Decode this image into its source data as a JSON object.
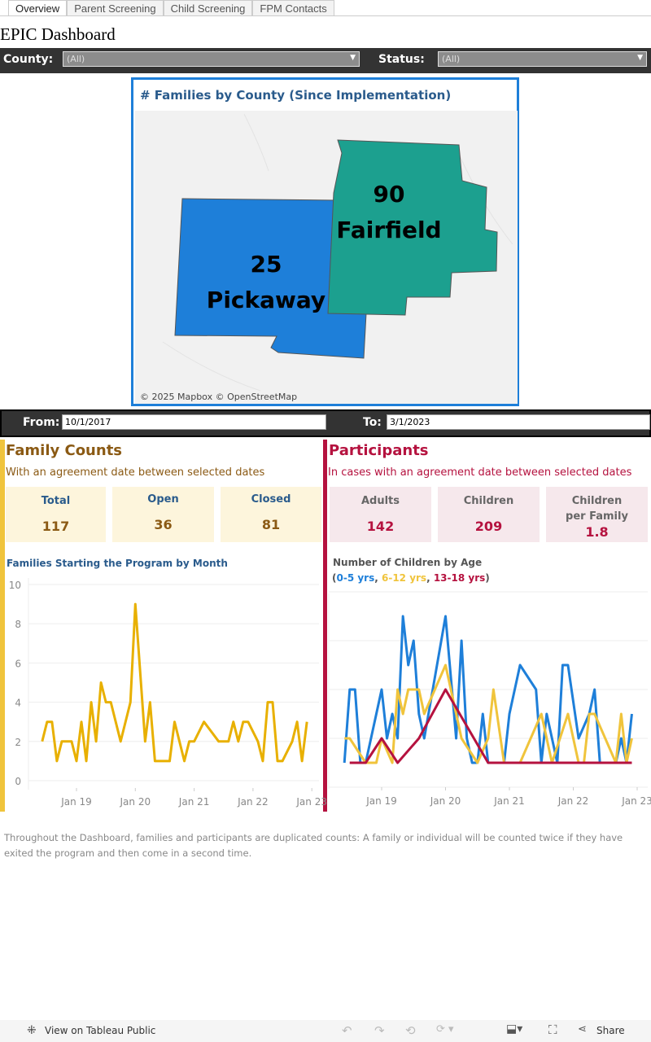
{
  "tabs": [
    "Overview",
    "Parent Screening",
    "Child Screening",
    "FPM Contacts"
  ],
  "title": "EPIC Dashboard",
  "filters": {
    "county_label": "County:",
    "county_value": "(All)",
    "status_label": "Status:",
    "status_value": "(All)"
  },
  "map": {
    "title": "# Families by County (Since Implementation)",
    "credit": "© 2025 Mapbox  © OpenStreetMap",
    "counties": [
      {
        "name": "Pickaway",
        "value": "25",
        "color": "#1e7fd9"
      },
      {
        "name": "Fairfield",
        "value": "90",
        "color": "#1ca08f"
      }
    ]
  },
  "dates": {
    "from_label": "From:",
    "from_value": "10/1/2017",
    "to_label": "To:",
    "to_value": "3/1/2023"
  },
  "family": {
    "title": "Family Counts",
    "subtitle": "With an agreement date between selected dates",
    "color": "#8b5a14",
    "accent": "#f0c43c",
    "cards": [
      {
        "label": "Total",
        "value": "117"
      },
      {
        "label": "Open",
        "value": "36"
      },
      {
        "label": "Closed",
        "value": "81"
      }
    ]
  },
  "participants": {
    "title": "Participants",
    "subtitle": "In cases with an agreement date between selected dates",
    "color": "#b5123f",
    "cards": [
      {
        "label": "Adults",
        "value": "142"
      },
      {
        "label": "Children",
        "value": "209"
      },
      {
        "label": "Children per Family",
        "value": "1.8"
      }
    ]
  },
  "chart_data": [
    {
      "type": "line",
      "title": "Families Starting the Program by Month",
      "ylim": [
        0,
        10
      ],
      "yticks": [
        "0",
        "2",
        "4",
        "6",
        "8",
        "10"
      ],
      "xticks": [
        "Jan 19",
        "Jan 20",
        "Jan 21",
        "Jan 22",
        "Jan 23"
      ],
      "series": [
        {
          "color": "#e8b000",
          "points": [
            [
              "2018-06",
              2
            ],
            [
              "2018-07",
              3
            ],
            [
              "2018-08",
              3
            ],
            [
              "2018-09",
              1
            ],
            [
              "2018-10",
              2
            ],
            [
              "2018-11",
              2
            ],
            [
              "2018-12",
              2
            ],
            [
              "2019-01",
              1
            ],
            [
              "2019-02",
              3
            ],
            [
              "2019-03",
              1
            ],
            [
              "2019-04",
              4
            ],
            [
              "2019-05",
              2
            ],
            [
              "2019-06",
              5
            ],
            [
              "2019-07",
              4
            ],
            [
              "2019-08",
              4
            ],
            [
              "2019-10",
              2
            ],
            [
              "2019-12",
              4
            ],
            [
              "2020-01",
              9
            ],
            [
              "2020-03",
              2
            ],
            [
              "2020-04",
              4
            ],
            [
              "2020-05",
              1
            ],
            [
              "2020-08",
              1
            ],
            [
              "2020-09",
              3
            ],
            [
              "2020-11",
              1
            ],
            [
              "2020-12",
              2
            ],
            [
              "2021-01",
              2
            ],
            [
              "2021-03",
              3
            ],
            [
              "2021-06",
              2
            ],
            [
              "2021-08",
              2
            ],
            [
              "2021-09",
              3
            ],
            [
              "2021-10",
              2
            ],
            [
              "2021-11",
              3
            ],
            [
              "2021-12",
              3
            ],
            [
              "2022-02",
              2
            ],
            [
              "2022-03",
              1
            ],
            [
              "2022-04",
              4
            ],
            [
              "2022-05",
              4
            ],
            [
              "2022-06",
              1
            ],
            [
              "2022-07",
              1
            ],
            [
              "2022-09",
              2
            ],
            [
              "2022-10",
              3
            ],
            [
              "2022-11",
              1
            ],
            [
              "2022-12",
              3
            ]
          ]
        }
      ]
    },
    {
      "type": "line",
      "title": "Number of Children by Age",
      "legend": [
        {
          "name": "0-5 yrs",
          "color": "#1e7fd9"
        },
        {
          "name": "6-12 yrs",
          "color": "#f0c43c"
        },
        {
          "name": "13-18 yrs",
          "color": "#b5123f"
        }
      ],
      "ylim": [
        0,
        8
      ],
      "xticks": [
        "Jan 19",
        "Jan 20",
        "Jan 21",
        "Jan 22",
        "Jan 23"
      ],
      "series": [
        {
          "name": "0-5 yrs",
          "color": "#1e7fd9",
          "points": [
            [
              "2018-06",
              1
            ],
            [
              "2018-07",
              4
            ],
            [
              "2018-08",
              4
            ],
            [
              "2018-09",
              1
            ],
            [
              "2018-10",
              1
            ],
            [
              "2018-12",
              3
            ],
            [
              "2019-01",
              4
            ],
            [
              "2019-02",
              2
            ],
            [
              "2019-03",
              3
            ],
            [
              "2019-04",
              2
            ],
            [
              "2019-05",
              7
            ],
            [
              "2019-06",
              5
            ],
            [
              "2019-07",
              6
            ],
            [
              "2019-08",
              3
            ],
            [
              "2019-09",
              2
            ],
            [
              "2020-01",
              7
            ],
            [
              "2020-03",
              2
            ],
            [
              "2020-04",
              6
            ],
            [
              "2020-05",
              2
            ],
            [
              "2020-06",
              1
            ],
            [
              "2020-07",
              1
            ],
            [
              "2020-08",
              3
            ],
            [
              "2020-09",
              1
            ],
            [
              "2020-12",
              1
            ],
            [
              "2021-01",
              3
            ],
            [
              "2021-03",
              5
            ],
            [
              "2021-06",
              4
            ],
            [
              "2021-07",
              1
            ],
            [
              "2021-08",
              3
            ],
            [
              "2021-10",
              1
            ],
            [
              "2021-11",
              5
            ],
            [
              "2021-12",
              5
            ],
            [
              "2022-02",
              2
            ],
            [
              "2022-04",
              3
            ],
            [
              "2022-05",
              4
            ],
            [
              "2022-06",
              1
            ],
            [
              "2022-09",
              1
            ],
            [
              "2022-10",
              2
            ],
            [
              "2022-11",
              1
            ],
            [
              "2022-12",
              3
            ]
          ]
        },
        {
          "name": "6-12 yrs",
          "color": "#f0c43c",
          "points": [
            [
              "2018-06",
              2
            ],
            [
              "2018-07",
              2
            ],
            [
              "2018-10",
              1
            ],
            [
              "2018-12",
              1
            ],
            [
              "2019-01",
              2
            ],
            [
              "2019-03",
              1
            ],
            [
              "2019-04",
              4
            ],
            [
              "2019-05",
              3
            ],
            [
              "2019-06",
              4
            ],
            [
              "2019-08",
              4
            ],
            [
              "2019-09",
              3
            ],
            [
              "2020-01",
              5
            ],
            [
              "2020-04",
              2
            ],
            [
              "2020-07",
              1
            ],
            [
              "2020-09",
              2
            ],
            [
              "2020-10",
              4
            ],
            [
              "2020-12",
              1
            ],
            [
              "2021-03",
              1
            ],
            [
              "2021-07",
              3
            ],
            [
              "2021-09",
              1
            ],
            [
              "2021-12",
              3
            ],
            [
              "2022-02",
              1
            ],
            [
              "2022-03",
              1
            ],
            [
              "2022-04",
              3
            ],
            [
              "2022-05",
              3
            ],
            [
              "2022-09",
              1
            ],
            [
              "2022-10",
              3
            ],
            [
              "2022-11",
              1
            ],
            [
              "2022-12",
              2
            ]
          ]
        },
        {
          "name": "13-18 yrs",
          "color": "#b5123f",
          "points": [
            [
              "2018-07",
              1
            ],
            [
              "2018-10",
              1
            ],
            [
              "2019-01",
              2
            ],
            [
              "2019-04",
              1
            ],
            [
              "2019-08",
              2
            ],
            [
              "2020-01",
              4
            ],
            [
              "2020-09",
              1
            ],
            [
              "2022-12",
              1
            ]
          ]
        }
      ]
    }
  ],
  "note": "Throughout the Dashboard, families and participants are duplicated counts: A family or individual will be counted twice if they have exited the program and then come in a second time.",
  "footer": {
    "view_label": "View on Tableau Public",
    "share_label": "Share"
  }
}
